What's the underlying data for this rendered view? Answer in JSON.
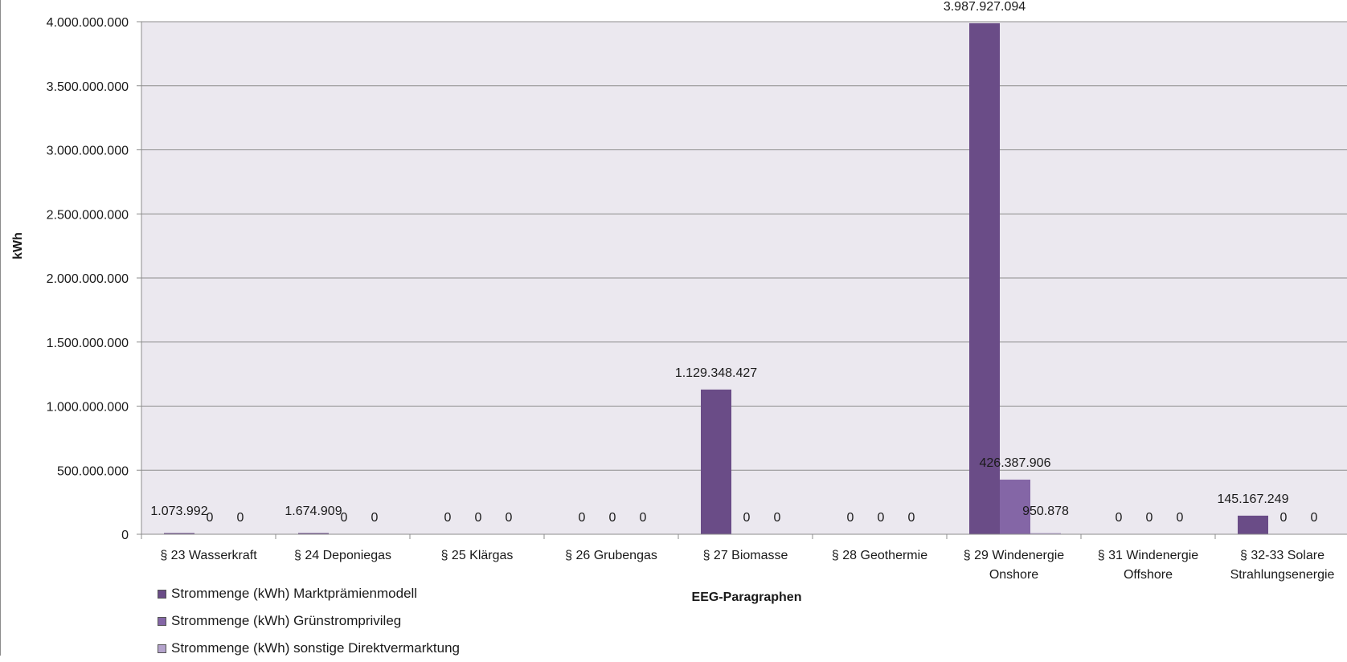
{
  "chart_data": {
    "type": "bar",
    "title": "",
    "xlabel": "EEG-Paragraphen",
    "ylabel": "kWh",
    "ylim": [
      0,
      4000000000
    ],
    "yticks": [
      0,
      500000000,
      1000000000,
      1500000000,
      2000000000,
      2500000000,
      3000000000,
      3500000000,
      4000000000
    ],
    "ytick_labels": [
      "0",
      "500.000.000",
      "1.000.000.000",
      "1.500.000.000",
      "2.000.000.000",
      "2.500.000.000",
      "3.000.000.000",
      "3.500.000.000",
      "4.000.000.000"
    ],
    "grid": true,
    "legend_position": "bottom-left",
    "categories": [
      [
        "§ 23 Wasserkraft"
      ],
      [
        "§ 24 Deponiegas"
      ],
      [
        "§ 25 Klärgas"
      ],
      [
        "§ 26 Grubengas"
      ],
      [
        "§ 27 Biomasse"
      ],
      [
        "§ 28 Geothermie"
      ],
      [
        "§ 29 Windenergie",
        "Onshore"
      ],
      [
        "§ 31 Windenergie",
        "Offshore"
      ],
      [
        "§ 32-33 Solare",
        "Strahlungsenergie"
      ]
    ],
    "series": [
      {
        "name": "Strommenge (kWh) Marktprämienmodell",
        "color": "#6a4c87",
        "values": [
          1073992,
          1674909,
          0,
          0,
          1129348427,
          0,
          3987927094,
          0,
          145167249
        ],
        "labels": [
          "1.073.992",
          "1.674.909",
          "0",
          "0",
          "1.129.348.427",
          "0",
          "3.987.927.094",
          "0",
          "145.167.249"
        ]
      },
      {
        "name": "Strommenge (kWh) Grünstromprivileg",
        "color": "#8466a6",
        "values": [
          0,
          0,
          0,
          0,
          0,
          0,
          426387906,
          0,
          0
        ],
        "labels": [
          "0",
          "0",
          "0",
          "0",
          "0",
          "0",
          "426.387.906",
          "0",
          "0"
        ]
      },
      {
        "name": "Strommenge (kWh) sonstige Direktvermarktung",
        "color": "#b4a3cc",
        "values": [
          0,
          0,
          0,
          0,
          0,
          0,
          950878,
          0,
          0
        ],
        "labels": [
          "0",
          "0",
          "0",
          "0",
          "0",
          "0",
          "950.878",
          "0",
          "0"
        ]
      }
    ],
    "colors": {
      "plot_background": "#ebe8ef",
      "grid": "#8c8c8c"
    }
  }
}
